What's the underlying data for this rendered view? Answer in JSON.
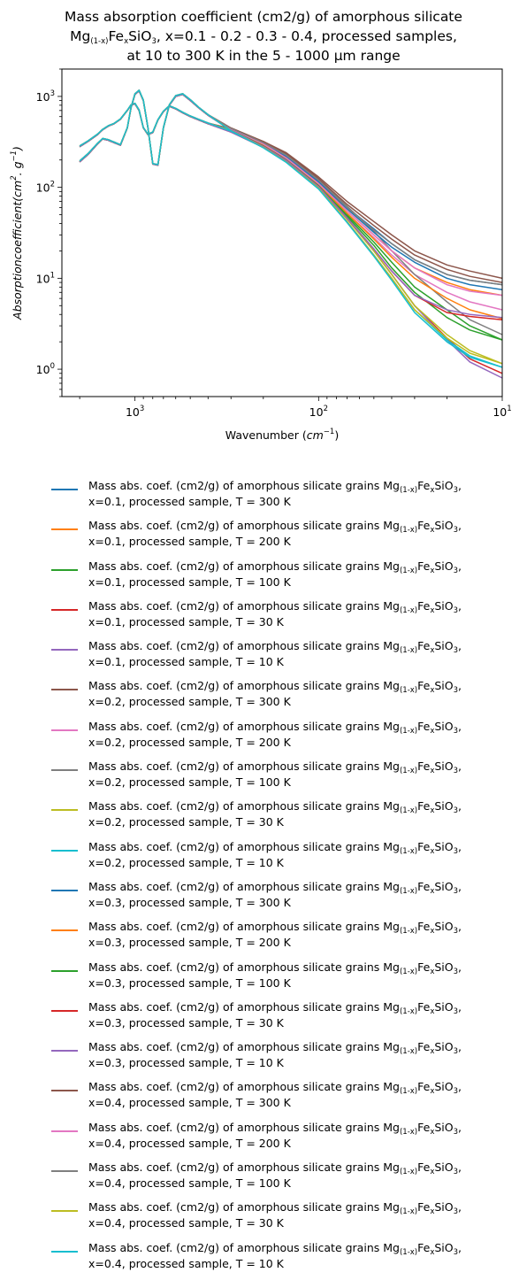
{
  "chart_data": {
    "type": "line",
    "title_lines": [
      "Mass absorption coefficient (cm2/g) of amorphous silicate",
      "Mg(1-x)FexSiO3, x=0.1 - 0.2 - 0.3 - 0.4, processed samples,",
      "at 10 to 300 K in the 5 - 1000 µm range"
    ],
    "xlabel": "Wavenumber (cm-1)",
    "ylabel": "Absorptioncoefficient(cm2.g-1)",
    "xscale": "log",
    "yscale": "log",
    "xlim": [
      2500,
      10
    ],
    "ylim": [
      0.5,
      2000
    ],
    "x_tick_labels": [
      "10^3",
      "10^2",
      "10^1"
    ],
    "y_tick_labels": [
      "10^0",
      "10^1",
      "10^2",
      "10^3"
    ],
    "grid": false,
    "legend_position": "below",
    "x_shared": [
      2000,
      1800,
      1600,
      1500,
      1400,
      1300,
      1200,
      1100,
      1050,
      1000,
      950,
      900,
      850,
      800,
      750,
      700,
      650,
      600,
      550,
      500,
      450,
      400,
      300,
      200,
      150,
      100,
      70,
      50,
      40,
      30,
      20,
      15,
      10
    ],
    "series": [
      {
        "name_prefix": "Mass abs. coef. (cm2/g) of amorphous silicate grains",
        "name_suffix": "x=0.1, processed sample, T = 300 K",
        "color": "#1f77b4",
        "values": [
          280,
          320,
          380,
          430,
          470,
          500,
          560,
          700,
          800,
          830,
          700,
          450,
          380,
          400,
          550,
          680,
          780,
          730,
          660,
          600,
          550,
          500,
          420,
          300,
          220,
          120,
          60,
          35,
          24,
          16,
          11,
          9.5,
          8.5
        ]
      },
      {
        "name_prefix": "Mass abs. coef. (cm2/g) of amorphous silicate grains",
        "name_suffix": "x=0.1, processed sample, T = 200 K",
        "color": "#ff7f0e",
        "values": [
          280,
          320,
          380,
          430,
          470,
          500,
          560,
          700,
          800,
          830,
          700,
          450,
          380,
          400,
          550,
          680,
          780,
          730,
          660,
          600,
          550,
          500,
          415,
          290,
          210,
          115,
          55,
          30,
          20,
          13,
          9,
          7.5,
          6.5
        ]
      },
      {
        "name_prefix": "Mass abs. coef. (cm2/g) of amorphous silicate grains",
        "name_suffix": "x=0.1, processed sample, T = 100 K",
        "color": "#2ca02c",
        "values": [
          280,
          320,
          380,
          430,
          470,
          500,
          560,
          700,
          800,
          830,
          700,
          450,
          380,
          400,
          550,
          680,
          780,
          730,
          660,
          600,
          550,
          500,
          410,
          280,
          200,
          110,
          50,
          25,
          15,
          8,
          4.5,
          3,
          2.1
        ]
      },
      {
        "name_prefix": "Mass abs. coef. (cm2/g) of amorphous silicate grains",
        "name_suffix": "x=0.1, processed sample, T = 30 K",
        "color": "#d62728",
        "values": [
          280,
          320,
          380,
          430,
          470,
          500,
          560,
          700,
          800,
          830,
          700,
          450,
          380,
          400,
          550,
          680,
          780,
          730,
          660,
          600,
          550,
          500,
          405,
          275,
          195,
          105,
          45,
          20,
          11,
          5,
          2.2,
          1.3,
          0.9
        ]
      },
      {
        "name_prefix": "Mass abs. coef. (cm2/g) of amorphous silicate grains",
        "name_suffix": "x=0.1, processed sample, T = 10 K",
        "color": "#9467bd",
        "values": [
          280,
          320,
          380,
          430,
          470,
          500,
          560,
          700,
          800,
          830,
          700,
          450,
          380,
          400,
          550,
          680,
          780,
          730,
          660,
          600,
          550,
          500,
          405,
          275,
          195,
          105,
          45,
          20,
          11,
          5,
          2.1,
          1.2,
          0.8
        ]
      },
      {
        "name_prefix": "Mass abs. coef. (cm2/g) of amorphous silicate grains",
        "name_suffix": "x=0.2, processed sample, T = 300 K",
        "color": "#8c564b",
        "values": [
          285,
          325,
          385,
          435,
          475,
          505,
          565,
          705,
          810,
          840,
          710,
          455,
          385,
          405,
          555,
          690,
          790,
          740,
          670,
          610,
          560,
          510,
          440,
          320,
          240,
          130,
          70,
          42,
          30,
          20,
          14,
          12,
          10
        ]
      },
      {
        "name_prefix": "Mass abs. coef. (cm2/g) of amorphous silicate grains",
        "name_suffix": "x=0.2, processed sample, T =  200 K",
        "color": "#e377c2",
        "values": [
          285,
          325,
          385,
          435,
          475,
          505,
          565,
          705,
          810,
          840,
          710,
          455,
          385,
          405,
          555,
          690,
          790,
          740,
          670,
          610,
          560,
          510,
          425,
          290,
          205,
          110,
          52,
          28,
          18,
          11,
          7,
          5.5,
          4.5
        ]
      },
      {
        "name_prefix": "Mass abs. coef. (cm2/g) of amorphous silicate grains",
        "name_suffix": "x=0.2, processed sample, T =  100 K",
        "color": "#7f7f7f",
        "values": [
          285,
          325,
          385,
          435,
          475,
          505,
          565,
          705,
          810,
          840,
          710,
          455,
          385,
          405,
          555,
          690,
          790,
          740,
          670,
          610,
          560,
          510,
          430,
          310,
          230,
          125,
          62,
          33,
          20,
          11,
          5.5,
          3.5,
          2.4
        ]
      },
      {
        "name_prefix": "Mass abs. coef. (cm2/g) of amorphous silicate grains",
        "name_suffix": "x=0.2, processed sample, T =  30 K",
        "color": "#bcbd22",
        "values": [
          285,
          325,
          385,
          435,
          475,
          505,
          565,
          705,
          810,
          840,
          710,
          455,
          385,
          405,
          555,
          690,
          790,
          740,
          670,
          610,
          560,
          510,
          420,
          280,
          195,
          100,
          45,
          20,
          11,
          5,
          2.4,
          1.6,
          1.15
        ]
      },
      {
        "name_prefix": "Mass abs. coef. (cm2/g) of amorphous silicate grains",
        "name_suffix": "x=0.2, processed sample, T =  10 K",
        "color": "#17becf",
        "values": [
          285,
          325,
          385,
          435,
          475,
          505,
          565,
          705,
          810,
          840,
          710,
          455,
          385,
          405,
          555,
          690,
          790,
          740,
          670,
          610,
          560,
          510,
          415,
          275,
          190,
          97,
          42,
          18,
          10,
          4.5,
          2.1,
          1.4,
          1.05
        ]
      },
      {
        "name_prefix": "Mass abs. coef. (cm2/g) of amorphous silicate grains",
        "name_suffix": "x=0.3, processed sample, T =  300 K",
        "color": "#1f77b4",
        "values": [
          190,
          230,
          300,
          340,
          330,
          310,
          290,
          450,
          750,
          1050,
          1150,
          900,
          450,
          180,
          175,
          450,
          800,
          1000,
          1050,
          900,
          750,
          620,
          440,
          300,
          215,
          115,
          58,
          32,
          22,
          15,
          10,
          8.5,
          7.5
        ]
      },
      {
        "name_prefix": "Mass abs. coef. (cm2/g) of amorphous silicate grains",
        "name_suffix": "x=0.3, processed sample, T =  200 K",
        "color": "#ff7f0e",
        "values": [
          190,
          230,
          300,
          340,
          330,
          310,
          290,
          450,
          750,
          1050,
          1150,
          900,
          450,
          180,
          175,
          450,
          800,
          1000,
          1050,
          900,
          750,
          620,
          435,
          290,
          205,
          108,
          52,
          27,
          17,
          10,
          6,
          4.5,
          3.6
        ]
      },
      {
        "name_prefix": "Mass abs. coef. (cm2/g) of amorphous silicate grains",
        "name_suffix": "x=0.3, processed sample, T =  100 K",
        "color": "#2ca02c",
        "values": [
          190,
          230,
          300,
          340,
          330,
          310,
          290,
          450,
          750,
          1050,
          1150,
          900,
          450,
          180,
          175,
          450,
          800,
          1000,
          1050,
          900,
          750,
          620,
          430,
          285,
          200,
          104,
          48,
          23,
          13,
          7,
          3.7,
          2.7,
          2.1
        ]
      },
      {
        "name_prefix": "Mass abs. coef. (cm2/g) of amorphous silicate grains",
        "name_suffix": "x=0.3, processed sample, T =  30 K",
        "color": "#d62728",
        "values": [
          190,
          230,
          300,
          340,
          330,
          310,
          290,
          450,
          750,
          1050,
          1150,
          900,
          450,
          180,
          175,
          450,
          800,
          1000,
          1050,
          900,
          750,
          620,
          425,
          282,
          198,
          102,
          46,
          21,
          12,
          6.5,
          4.2,
          3.8,
          3.5
        ]
      },
      {
        "name_prefix": "Mass abs. coef. (cm2/g) of amorphous silicate grains",
        "name_suffix": "x=0.3, processed sample, T =  10 K",
        "color": "#9467bd",
        "values": [
          190,
          230,
          300,
          340,
          330,
          310,
          290,
          450,
          750,
          1050,
          1150,
          900,
          450,
          180,
          175,
          450,
          800,
          1000,
          1050,
          900,
          750,
          620,
          425,
          282,
          198,
          102,
          46,
          21,
          12,
          6.5,
          4.5,
          4.0,
          3.7
        ]
      },
      {
        "name_prefix": "Mass abs. coef. (cm2/g) of amorphous silicate grains",
        "name_suffix": "x=0.4, processed sample, T =  300 K",
        "color": "#8c564b",
        "values": [
          195,
          235,
          305,
          345,
          335,
          315,
          295,
          455,
          760,
          1070,
          1170,
          910,
          455,
          182,
          178,
          455,
          810,
          1020,
          1070,
          920,
          760,
          630,
          450,
          320,
          235,
          125,
          65,
          38,
          27,
          18,
          12.5,
          10.5,
          9
        ]
      },
      {
        "name_prefix": "Mass abs. coef. (cm2/g) of amorphous silicate grains",
        "name_suffix": "x=0.4, processed sample, T =  200 K",
        "color": "#e377c2",
        "values": [
          195,
          235,
          305,
          345,
          335,
          315,
          295,
          455,
          760,
          1070,
          1170,
          910,
          455,
          182,
          178,
          455,
          810,
          1020,
          1070,
          920,
          760,
          630,
          440,
          300,
          210,
          110,
          55,
          30,
          20,
          13,
          8.5,
          7.2,
          6.5
        ]
      },
      {
        "name_prefix": "Mass abs. coef. (cm2/g) of amorphous silicate grains",
        "name_suffix": "x=0.4, processed sample, T =  100 K",
        "color": "#7f7f7f",
        "values": [
          195,
          235,
          305,
          345,
          335,
          315,
          295,
          455,
          760,
          1070,
          1170,
          910,
          455,
          182,
          178,
          455,
          810,
          1020,
          1070,
          920,
          760,
          630,
          445,
          310,
          225,
          120,
          60,
          34,
          24,
          16,
          11,
          9.5,
          8.5
        ]
      },
      {
        "name_prefix": "Mass abs. coef. (cm2/g) of amorphous silicate grains",
        "name_suffix": "x=0.4, processed sample, T =  30 K",
        "color": "#bcbd22",
        "values": [
          195,
          235,
          305,
          345,
          335,
          315,
          295,
          455,
          760,
          1070,
          1170,
          910,
          455,
          182,
          178,
          455,
          810,
          1020,
          1070,
          920,
          760,
          630,
          420,
          275,
          190,
          98,
          42,
          18,
          10,
          4.5,
          2.2,
          1.5,
          1.15
        ]
      },
      {
        "name_prefix": "Mass abs. coef. (cm2/g) of amorphous silicate grains",
        "name_suffix": "x=0.4, processed sample, T =  10 K",
        "color": "#17becf",
        "values": [
          195,
          235,
          305,
          345,
          335,
          315,
          295,
          455,
          760,
          1070,
          1170,
          910,
          455,
          182,
          178,
          455,
          810,
          1020,
          1070,
          920,
          760,
          630,
          418,
          272,
          188,
          96,
          41,
          17.5,
          9.5,
          4.2,
          2.0,
          1.35,
          1.05
        ]
      }
    ]
  }
}
